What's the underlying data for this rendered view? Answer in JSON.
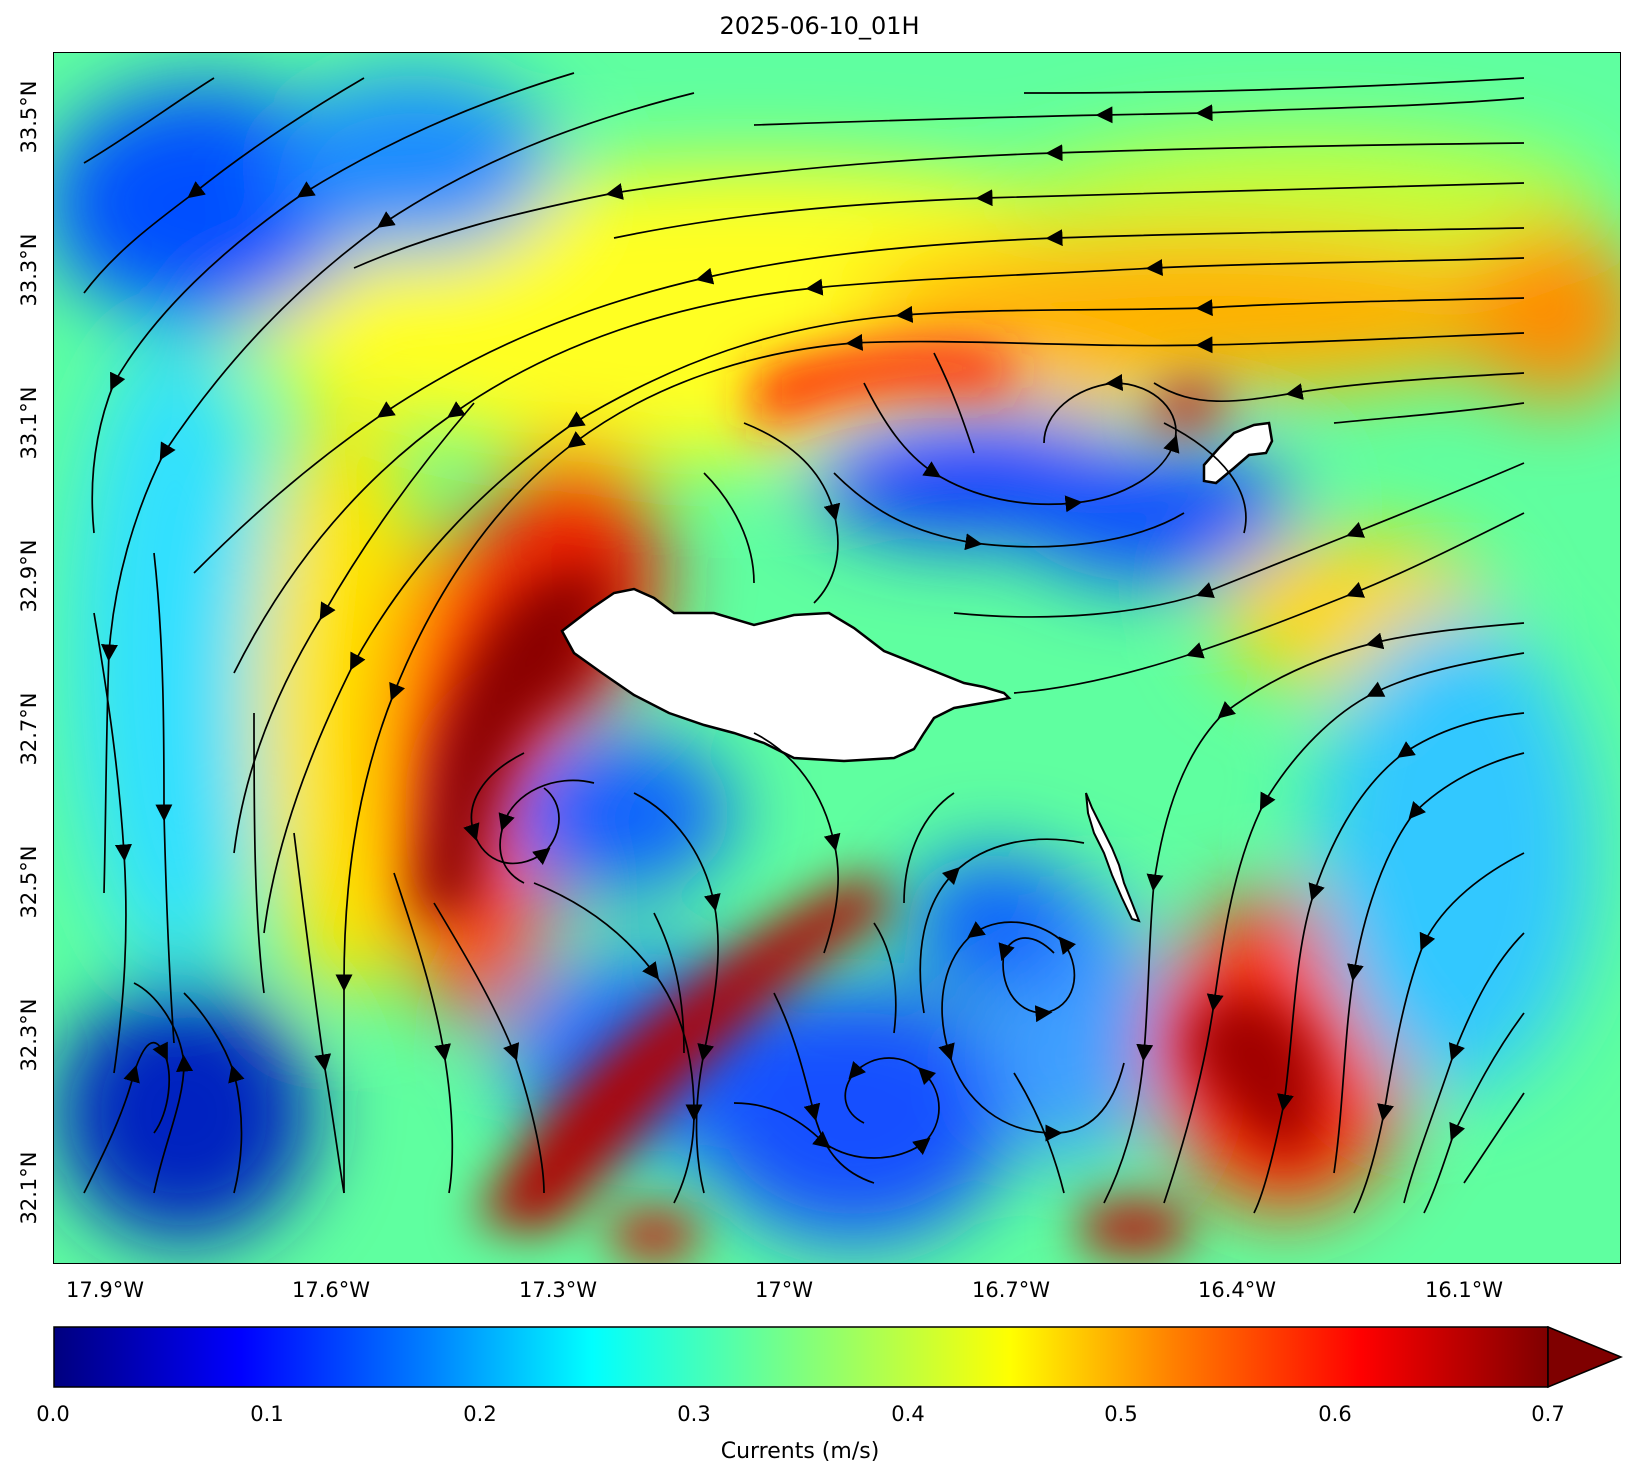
{
  "title": "2025-06-10_01H",
  "map": {
    "latitude_labels": [
      "33.5°N",
      "33.3°N",
      "33.1°N",
      "32.9°N",
      "32.7°N",
      "32.5°N",
      "32.3°N",
      "32.1°N"
    ],
    "longitude_labels": [
      "17.9°W",
      "17.6°W",
      "17.3°W",
      "17°W",
      "16.7°W",
      "16.4°W",
      "16.1°W"
    ],
    "islands": [
      "madeira-island",
      "porto-santo-island",
      "desertas-islands"
    ],
    "land_color": "#ffffff",
    "streamline_color": "#000000"
  },
  "colorbar": {
    "label": "Currents (m/s)",
    "ticks": [
      "0.0",
      "0.1",
      "0.2",
      "0.3",
      "0.4",
      "0.5",
      "0.6",
      "0.7"
    ],
    "min": 0.0,
    "max": 0.7,
    "extend": "max",
    "colormap": "jet",
    "colors": [
      "#00007f",
      "#0000ff",
      "#007fff",
      "#00ffff",
      "#7fff7f",
      "#ffff00",
      "#ff7f00",
      "#ff0000",
      "#7f0000"
    ]
  }
}
